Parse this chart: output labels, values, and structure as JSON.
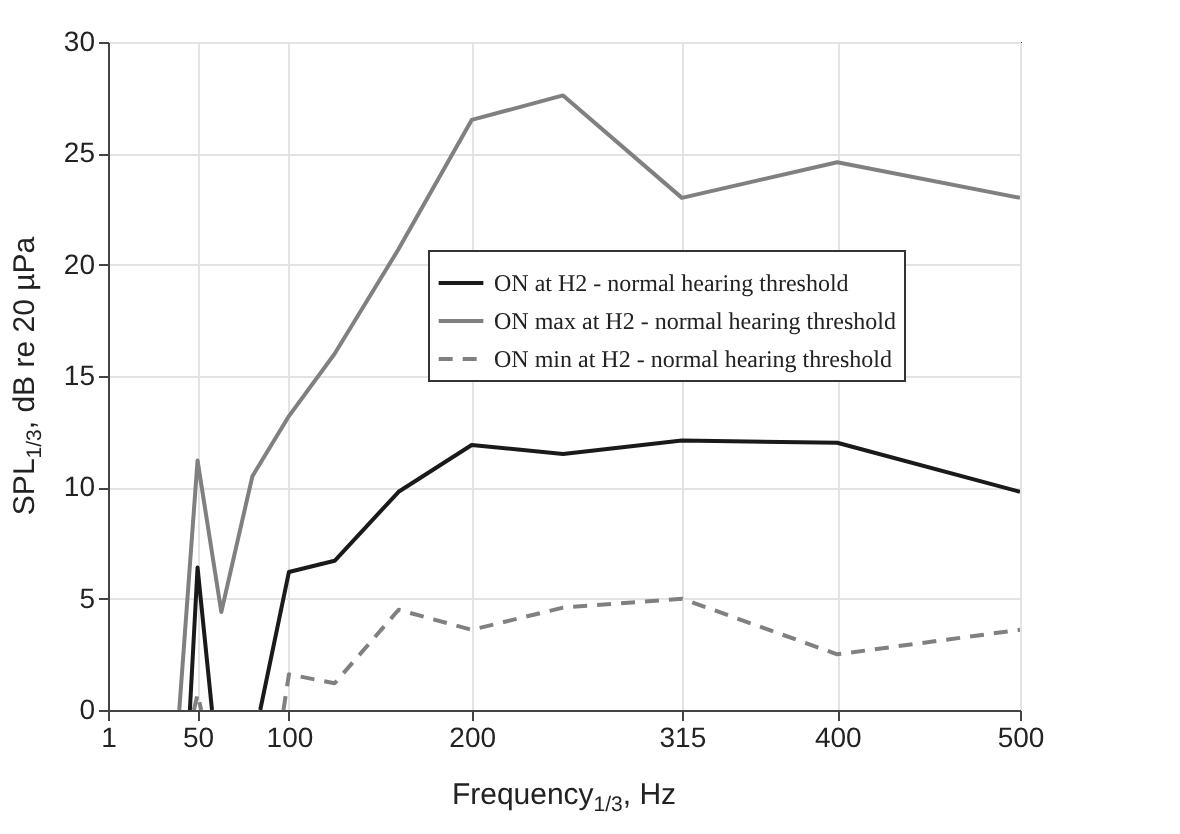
{
  "chart_data": {
    "type": "line",
    "xlabel": "Frequency$_{1/3}$, Hz",
    "ylabel": "SPL$_{1/3}$, dB re 20 µPa",
    "xlim": [
      1,
      500
    ],
    "xticks": [
      1,
      50,
      100,
      200,
      315,
      400,
      500
    ],
    "ylim": [
      0,
      30
    ],
    "yticks": [
      0,
      5,
      10,
      15,
      20,
      25,
      30
    ],
    "grid": true,
    "legend": "right",
    "marker": "none",
    "series": [
      {
        "name": "ON at H2 - normal hearing threshold",
        "color": "#1a1a1a",
        "line_style": "solid",
        "x": [
          45.8,
          50,
          57.9,
          70,
          84.3,
          100,
          125,
          160,
          200,
          250,
          315,
          400,
          500
        ],
        "values": [
          0,
          6.4,
          0,
          null,
          0,
          6.2,
          6.7,
          9.8,
          11.9,
          11.5,
          12.1,
          12.0,
          9.8
        ]
      },
      {
        "name": "ON max at H2 - normal hearing threshold",
        "color": "#808080",
        "line_style": "solid",
        "x": [
          40,
          50,
          63,
          80,
          100,
          125,
          160,
          200,
          250,
          315,
          400,
          500
        ],
        "values": [
          0,
          11.2,
          4.4,
          10.5,
          13.2,
          16,
          20.7,
          26.5,
          27.6,
          23.0,
          24.6,
          23.0
        ]
      },
      {
        "name": "ON min at H2 - normal hearing threshold",
        "color": "#808080",
        "line_style": "dashed",
        "x": [
          48,
          50,
          52,
          75,
          97,
          100,
          125,
          160,
          200,
          250,
          315,
          400,
          500
        ],
        "values": [
          0,
          0.7,
          0,
          null,
          0,
          1.6,
          1.2,
          4.5,
          3.6,
          4.6,
          5.0,
          2.5,
          3.6
        ]
      }
    ]
  }
}
